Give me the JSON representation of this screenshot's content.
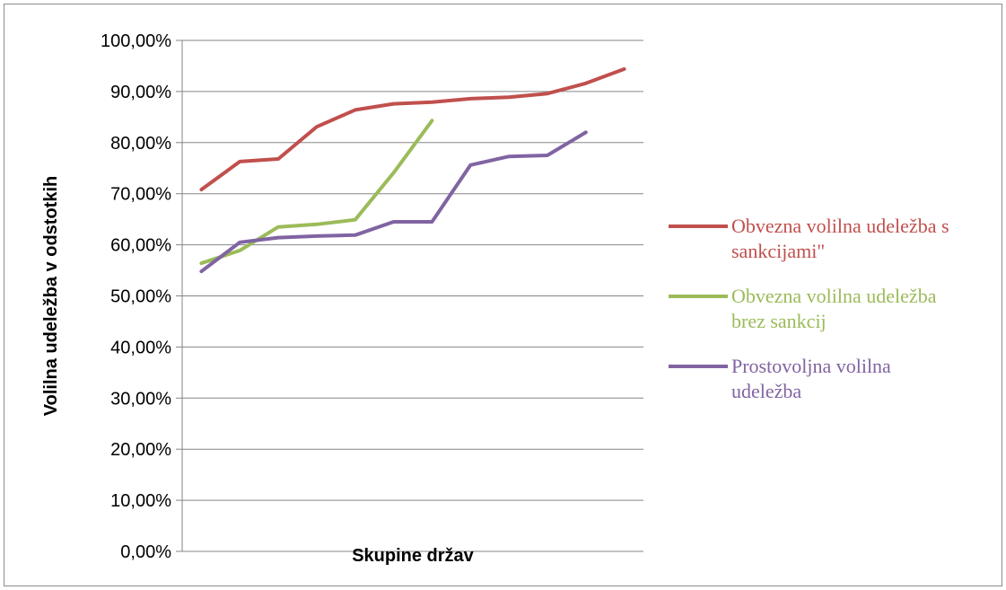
{
  "chart_data": {
    "type": "line",
    "title": "",
    "xlabel": "Skupine držav",
    "ylabel": "Volilna udeležba v odstotkih",
    "ylim": [
      0,
      100
    ],
    "y_ticks": [
      "0,00%",
      "10,00%",
      "20,00%",
      "30,00%",
      "40,00%",
      "50,00%",
      "60,00%",
      "70,00%",
      "80,00%",
      "90,00%",
      "100,00%"
    ],
    "x_tick_labels": false,
    "grid": "horizontal",
    "legend_position": "right",
    "series": [
      {
        "name": "Obvezna volilna udeležba s sankcijami\"",
        "legend_lines": [
          "Obvezna volilna udeležba s",
          "sankcijami\""
        ],
        "color": "#c0504d",
        "values": [
          70.8,
          76.3,
          76.8,
          83.1,
          86.4,
          87.6,
          87.9,
          88.6,
          88.9,
          89.6,
          91.6,
          94.4
        ]
      },
      {
        "name": "Obvezna volilna udeležba brez sankcij",
        "legend_lines": [
          "Obvezna volilna udeležba",
          "brez sankcij"
        ],
        "color": "#9bbb59",
        "values": [
          56.4,
          58.9,
          63.5,
          64.0,
          64.9,
          74.1,
          84.3
        ]
      },
      {
        "name": "Prostovoljna volilna udeležba",
        "legend_lines": [
          "Prostovoljna volilna",
          "udeležba"
        ],
        "color": "#8064a2",
        "values": [
          54.8,
          60.5,
          61.4,
          61.7,
          61.9,
          64.5,
          64.5,
          75.6,
          77.3,
          77.5,
          82.0
        ]
      }
    ]
  }
}
